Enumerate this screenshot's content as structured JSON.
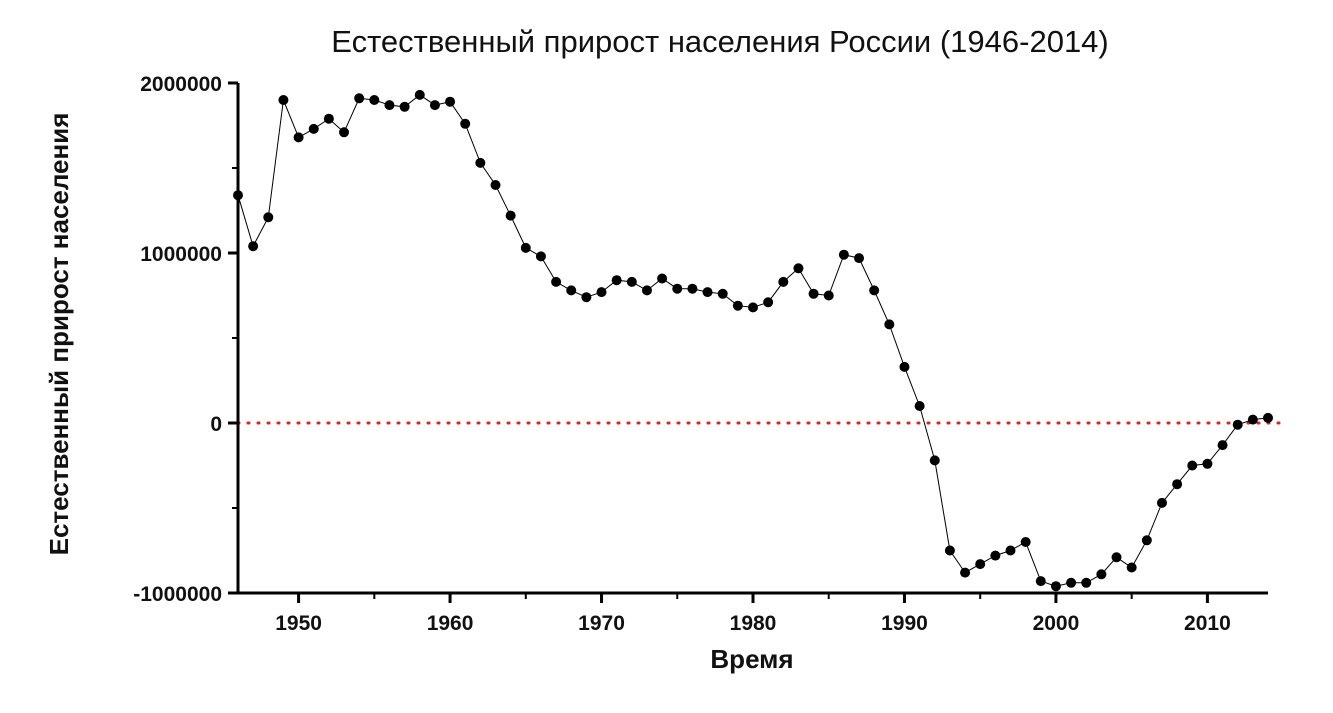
{
  "chart_data": {
    "type": "scatter",
    "title": "Естественный прирост населения России (1946-2014)",
    "xlabel": "Время",
    "ylabel": "Естественный прирост населения",
    "xlim": [
      1946,
      2014
    ],
    "ylim": [
      -1000000,
      2000000
    ],
    "x_ticks": [
      1950,
      1960,
      1970,
      1980,
      1990,
      2000,
      2010
    ],
    "y_ticks": [
      -1000000,
      0,
      1000000,
      2000000
    ],
    "x_tick_labels": [
      "1950",
      "1960",
      "1970",
      "1980",
      "1990",
      "2000",
      "2010"
    ],
    "y_tick_labels": [
      "-1000000",
      "0",
      "1000000",
      "2000000"
    ],
    "reference_line": {
      "y": 0,
      "style": "dotted",
      "color": "#e3201b"
    },
    "marker_color": "#000000",
    "line_color": "#000000",
    "grid": false,
    "series": [
      {
        "x": [
          1946,
          1947,
          1948,
          1949,
          1950,
          1951,
          1952,
          1953,
          1954,
          1955,
          1956,
          1957,
          1958,
          1959,
          1960,
          1961,
          1962,
          1963,
          1964,
          1965,
          1966,
          1967,
          1968,
          1969,
          1970,
          1971,
          1972,
          1973,
          1974,
          1975,
          1976,
          1977,
          1978,
          1979,
          1980,
          1981,
          1982,
          1983,
          1984,
          1985,
          1986,
          1987,
          1988,
          1989,
          1990,
          1991,
          1992,
          1993,
          1994,
          1995,
          1996,
          1997,
          1998,
          1999,
          2000,
          2001,
          2002,
          2003,
          2004,
          2005,
          2006,
          2007,
          2008,
          2009,
          2010,
          2011,
          2012,
          2013,
          2014
        ],
        "values": [
          1340000,
          1040000,
          1210000,
          1900000,
          1680000,
          1730000,
          1790000,
          1710000,
          1910000,
          1900000,
          1870000,
          1860000,
          1930000,
          1870000,
          1890000,
          1760000,
          1530000,
          1400000,
          1220000,
          1030000,
          980000,
          830000,
          780000,
          740000,
          770000,
          840000,
          830000,
          780000,
          850000,
          790000,
          790000,
          770000,
          760000,
          690000,
          680000,
          710000,
          830000,
          910000,
          760000,
          750000,
          990000,
          970000,
          780000,
          580000,
          330000,
          100000,
          -220000,
          -750000,
          -880000,
          -830000,
          -780000,
          -750000,
          -700000,
          -930000,
          -960000,
          -940000,
          -940000,
          -890000,
          -790000,
          -850000,
          -690000,
          -470000,
          -360000,
          -250000,
          -240000,
          -130000,
          -10000,
          20000,
          30000
        ]
      }
    ]
  }
}
